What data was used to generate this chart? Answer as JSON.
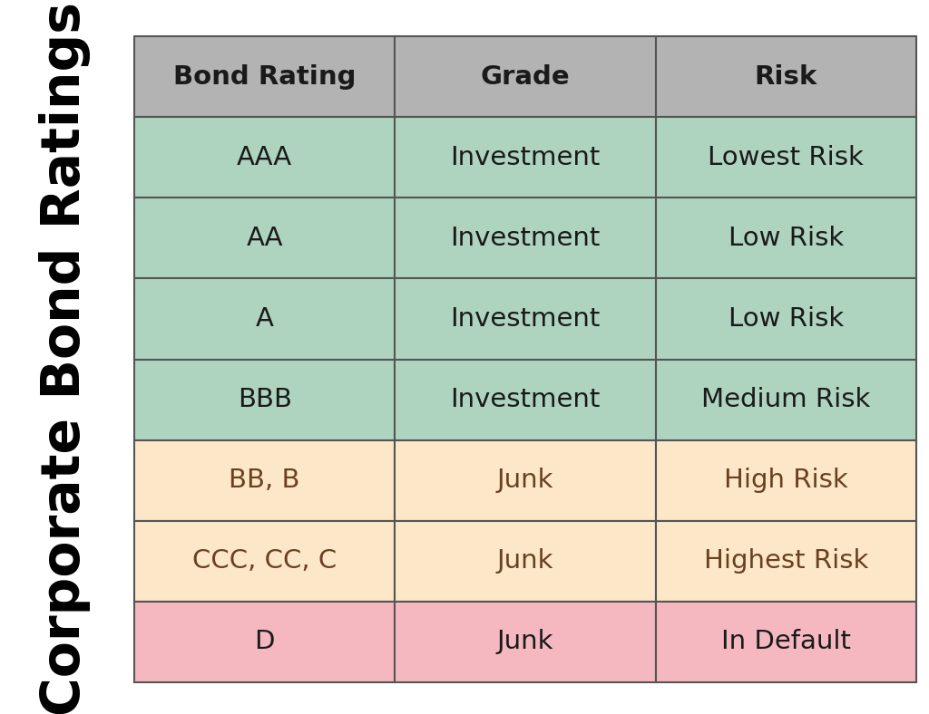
{
  "title": "Corporate Bond Ratings",
  "columns": [
    "Bond Rating",
    "Grade",
    "Risk"
  ],
  "rows": [
    [
      "AAA",
      "Investment",
      "Lowest Risk"
    ],
    [
      "AA",
      "Investment",
      "Low Risk"
    ],
    [
      "A",
      "Investment",
      "Low Risk"
    ],
    [
      "BBB",
      "Investment",
      "Medium Risk"
    ],
    [
      "BB, B",
      "Junk",
      "High Risk"
    ],
    [
      "CCC, CC, C",
      "Junk",
      "Highest Risk"
    ],
    [
      "D",
      "Junk",
      "In Default"
    ]
  ],
  "row_colors": [
    "#aed4c0",
    "#aed4c0",
    "#aed4c0",
    "#aed4c0",
    "#fce8c8",
    "#fce8c8",
    "#f5b8c0"
  ],
  "header_color": "#b3b3b3",
  "header_text_color": "#1a1a1a",
  "cell_text_color_green": "#1a1a1a",
  "cell_text_color_orange": "#6b4020",
  "cell_text_color_red": "#1a1a1a",
  "border_color": "#555555",
  "background_color": "#ffffff",
  "title_color": "#000000",
  "title_fontsize": 42,
  "header_fontsize": 21,
  "cell_fontsize": 21
}
